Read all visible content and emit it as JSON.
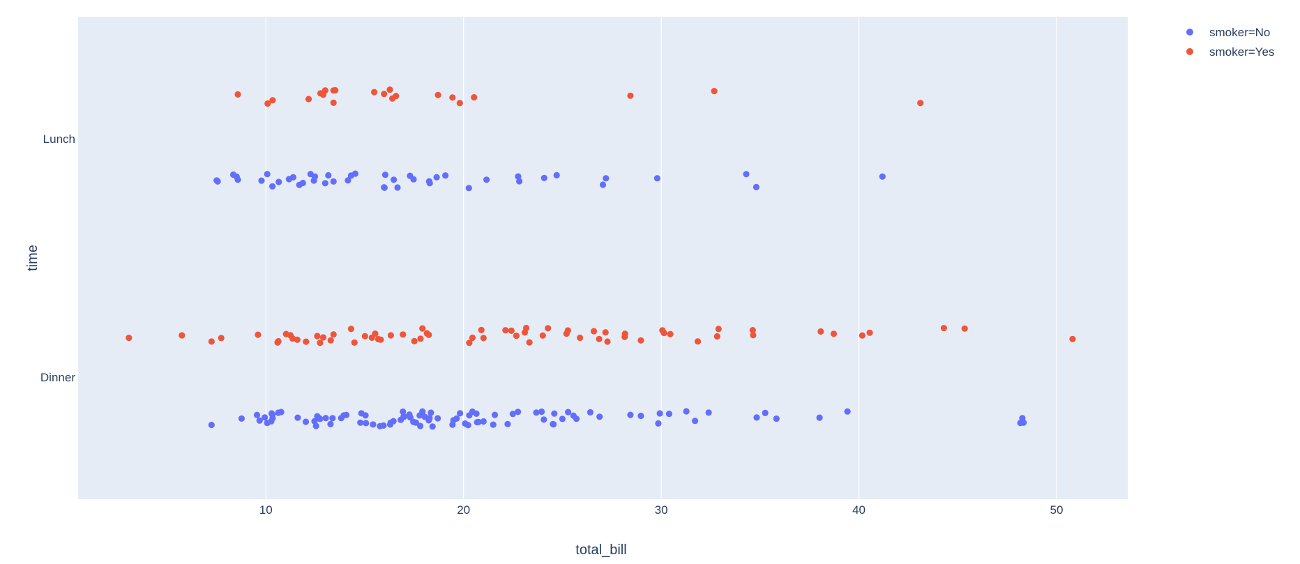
{
  "chart_data": {
    "type": "scatter",
    "subtype": "strip",
    "title": "",
    "xlabel": "total_bill",
    "ylabel": "time",
    "xlim": [
      0.5,
      53.6
    ],
    "xticks": [
      10,
      20,
      30,
      40,
      50
    ],
    "categories": [
      "Lunch",
      "Dinner"
    ],
    "grid": true,
    "legend_position": "top-right",
    "colors": {
      "plot_bg": "#e5ecf6",
      "grid": "#ffffff",
      "text": "#2a3f5f"
    },
    "series": [
      {
        "name": "smoker=No",
        "color": "#636efa",
        "points": [
          {
            "time": "Lunch",
            "x": 7.51
          },
          {
            "time": "Lunch",
            "x": 7.56
          },
          {
            "time": "Lunch",
            "x": 8.35
          },
          {
            "time": "Lunch",
            "x": 8.52
          },
          {
            "time": "Lunch",
            "x": 8.58
          },
          {
            "time": "Lunch",
            "x": 9.78
          },
          {
            "time": "Lunch",
            "x": 10.07
          },
          {
            "time": "Lunch",
            "x": 10.33
          },
          {
            "time": "Lunch",
            "x": 10.65
          },
          {
            "time": "Lunch",
            "x": 11.17
          },
          {
            "time": "Lunch",
            "x": 11.38
          },
          {
            "time": "Lunch",
            "x": 11.69
          },
          {
            "time": "Lunch",
            "x": 11.87
          },
          {
            "time": "Lunch",
            "x": 12.26
          },
          {
            "time": "Lunch",
            "x": 12.43
          },
          {
            "time": "Lunch",
            "x": 12.48
          },
          {
            "time": "Lunch",
            "x": 13.0
          },
          {
            "time": "Lunch",
            "x": 13.16
          },
          {
            "time": "Lunch",
            "x": 13.42
          },
          {
            "time": "Lunch",
            "x": 14.15
          },
          {
            "time": "Lunch",
            "x": 14.31
          },
          {
            "time": "Lunch",
            "x": 14.52
          },
          {
            "time": "Lunch",
            "x": 15.98
          },
          {
            "time": "Lunch",
            "x": 16.0
          },
          {
            "time": "Lunch",
            "x": 16.04
          },
          {
            "time": "Lunch",
            "x": 16.47
          },
          {
            "time": "Lunch",
            "x": 16.66
          },
          {
            "time": "Lunch",
            "x": 17.29
          },
          {
            "time": "Lunch",
            "x": 17.47
          },
          {
            "time": "Lunch",
            "x": 18.26
          },
          {
            "time": "Lunch",
            "x": 18.29
          },
          {
            "time": "Lunch",
            "x": 18.64
          },
          {
            "time": "Lunch",
            "x": 19.08
          },
          {
            "time": "Lunch",
            "x": 20.27
          },
          {
            "time": "Lunch",
            "x": 21.16
          },
          {
            "time": "Lunch",
            "x": 22.76
          },
          {
            "time": "Lunch",
            "x": 22.82
          },
          {
            "time": "Lunch",
            "x": 24.08
          },
          {
            "time": "Lunch",
            "x": 24.71
          },
          {
            "time": "Lunch",
            "x": 27.05
          },
          {
            "time": "Lunch",
            "x": 27.2
          },
          {
            "time": "Lunch",
            "x": 29.8
          },
          {
            "time": "Lunch",
            "x": 34.3
          },
          {
            "time": "Lunch",
            "x": 34.81
          },
          {
            "time": "Lunch",
            "x": 41.19
          },
          {
            "time": "Dinner",
            "x": 7.25
          },
          {
            "time": "Dinner",
            "x": 8.77
          },
          {
            "time": "Dinner",
            "x": 9.55
          },
          {
            "time": "Dinner",
            "x": 9.68
          },
          {
            "time": "Dinner",
            "x": 9.94
          },
          {
            "time": "Dinner",
            "x": 10.07
          },
          {
            "time": "Dinner",
            "x": 10.27
          },
          {
            "time": "Dinner",
            "x": 10.29
          },
          {
            "time": "Dinner",
            "x": 10.33
          },
          {
            "time": "Dinner",
            "x": 10.34
          },
          {
            "time": "Dinner",
            "x": 10.63
          },
          {
            "time": "Dinner",
            "x": 10.77
          },
          {
            "time": "Dinner",
            "x": 11.61
          },
          {
            "time": "Dinner",
            "x": 12.02
          },
          {
            "time": "Dinner",
            "x": 12.46
          },
          {
            "time": "Dinner",
            "x": 12.54
          },
          {
            "time": "Dinner",
            "x": 12.6
          },
          {
            "time": "Dinner",
            "x": 12.69
          },
          {
            "time": "Dinner",
            "x": 12.74
          },
          {
            "time": "Dinner",
            "x": 13.03
          },
          {
            "time": "Dinner",
            "x": 13.27
          },
          {
            "time": "Dinner",
            "x": 13.37
          },
          {
            "time": "Dinner",
            "x": 13.81
          },
          {
            "time": "Dinner",
            "x": 13.94
          },
          {
            "time": "Dinner",
            "x": 14.07
          },
          {
            "time": "Dinner",
            "x": 14.78
          },
          {
            "time": "Dinner",
            "x": 14.83
          },
          {
            "time": "Dinner",
            "x": 15.04
          },
          {
            "time": "Dinner",
            "x": 15.06
          },
          {
            "time": "Dinner",
            "x": 15.42
          },
          {
            "time": "Dinner",
            "x": 15.77
          },
          {
            "time": "Dinner",
            "x": 15.95
          },
          {
            "time": "Dinner",
            "x": 16.29
          },
          {
            "time": "Dinner",
            "x": 16.31
          },
          {
            "time": "Dinner",
            "x": 16.45
          },
          {
            "time": "Dinner",
            "x": 16.82
          },
          {
            "time": "Dinner",
            "x": 16.93
          },
          {
            "time": "Dinner",
            "x": 16.97
          },
          {
            "time": "Dinner",
            "x": 16.99
          },
          {
            "time": "Dinner",
            "x": 17.26
          },
          {
            "time": "Dinner",
            "x": 17.31
          },
          {
            "time": "Dinner",
            "x": 17.46
          },
          {
            "time": "Dinner",
            "x": 17.59
          },
          {
            "time": "Dinner",
            "x": 17.78
          },
          {
            "time": "Dinner",
            "x": 17.81
          },
          {
            "time": "Dinner",
            "x": 17.92
          },
          {
            "time": "Dinner",
            "x": 18.04
          },
          {
            "time": "Dinner",
            "x": 18.24
          },
          {
            "time": "Dinner",
            "x": 18.28
          },
          {
            "time": "Dinner",
            "x": 18.35
          },
          {
            "time": "Dinner",
            "x": 18.43
          },
          {
            "time": "Dinner",
            "x": 18.69
          },
          {
            "time": "Dinner",
            "x": 19.44
          },
          {
            "time": "Dinner",
            "x": 19.49
          },
          {
            "time": "Dinner",
            "x": 19.65
          },
          {
            "time": "Dinner",
            "x": 19.82
          },
          {
            "time": "Dinner",
            "x": 20.08
          },
          {
            "time": "Dinner",
            "x": 20.23
          },
          {
            "time": "Dinner",
            "x": 20.29
          },
          {
            "time": "Dinner",
            "x": 20.45
          },
          {
            "time": "Dinner",
            "x": 20.65
          },
          {
            "time": "Dinner",
            "x": 20.69
          },
          {
            "time": "Dinner",
            "x": 20.76
          },
          {
            "time": "Dinner",
            "x": 21.01
          },
          {
            "time": "Dinner",
            "x": 21.5
          },
          {
            "time": "Dinner",
            "x": 21.58
          },
          {
            "time": "Dinner",
            "x": 22.23
          },
          {
            "time": "Dinner",
            "x": 22.49
          },
          {
            "time": "Dinner",
            "x": 22.75
          },
          {
            "time": "Dinner",
            "x": 23.68
          },
          {
            "time": "Dinner",
            "x": 23.95
          },
          {
            "time": "Dinner",
            "x": 24.06
          },
          {
            "time": "Dinner",
            "x": 24.52
          },
          {
            "time": "Dinner",
            "x": 24.55
          },
          {
            "time": "Dinner",
            "x": 24.59
          },
          {
            "time": "Dinner",
            "x": 25.0
          },
          {
            "time": "Dinner",
            "x": 25.29
          },
          {
            "time": "Dinner",
            "x": 25.56
          },
          {
            "time": "Dinner",
            "x": 25.71
          },
          {
            "time": "Dinner",
            "x": 26.41
          },
          {
            "time": "Dinner",
            "x": 26.88
          },
          {
            "time": "Dinner",
            "x": 28.44
          },
          {
            "time": "Dinner",
            "x": 28.97
          },
          {
            "time": "Dinner",
            "x": 29.85
          },
          {
            "time": "Dinner",
            "x": 29.93
          },
          {
            "time": "Dinner",
            "x": 30.4
          },
          {
            "time": "Dinner",
            "x": 31.27
          },
          {
            "time": "Dinner",
            "x": 31.71
          },
          {
            "time": "Dinner",
            "x": 32.4
          },
          {
            "time": "Dinner",
            "x": 34.83
          },
          {
            "time": "Dinner",
            "x": 35.26
          },
          {
            "time": "Dinner",
            "x": 35.83
          },
          {
            "time": "Dinner",
            "x": 38.01
          },
          {
            "time": "Dinner",
            "x": 39.42
          },
          {
            "time": "Dinner",
            "x": 48.17
          },
          {
            "time": "Dinner",
            "x": 48.27
          },
          {
            "time": "Dinner",
            "x": 48.33
          }
        ]
      },
      {
        "name": "smoker=Yes",
        "color": "#ef553b",
        "points": [
          {
            "time": "Lunch",
            "x": 8.58
          },
          {
            "time": "Lunch",
            "x": 10.09
          },
          {
            "time": "Lunch",
            "x": 10.34
          },
          {
            "time": "Lunch",
            "x": 12.16
          },
          {
            "time": "Lunch",
            "x": 12.76
          },
          {
            "time": "Lunch",
            "x": 12.9
          },
          {
            "time": "Lunch",
            "x": 13.0
          },
          {
            "time": "Lunch",
            "x": 13.42
          },
          {
            "time": "Lunch",
            "x": 13.42
          },
          {
            "time": "Lunch",
            "x": 13.51
          },
          {
            "time": "Lunch",
            "x": 15.48
          },
          {
            "time": "Lunch",
            "x": 15.98
          },
          {
            "time": "Lunch",
            "x": 16.27
          },
          {
            "time": "Lunch",
            "x": 16.4
          },
          {
            "time": "Lunch",
            "x": 16.58
          },
          {
            "time": "Lunch",
            "x": 18.71
          },
          {
            "time": "Lunch",
            "x": 19.44
          },
          {
            "time": "Lunch",
            "x": 19.81
          },
          {
            "time": "Lunch",
            "x": 20.53
          },
          {
            "time": "Lunch",
            "x": 28.44
          },
          {
            "time": "Lunch",
            "x": 32.68
          },
          {
            "time": "Lunch",
            "x": 43.11
          },
          {
            "time": "Dinner",
            "x": 3.07
          },
          {
            "time": "Dinner",
            "x": 5.75
          },
          {
            "time": "Dinner",
            "x": 7.25
          },
          {
            "time": "Dinner",
            "x": 7.74
          },
          {
            "time": "Dinner",
            "x": 9.6
          },
          {
            "time": "Dinner",
            "x": 10.59
          },
          {
            "time": "Dinner",
            "x": 10.63
          },
          {
            "time": "Dinner",
            "x": 11.02
          },
          {
            "time": "Dinner",
            "x": 11.24
          },
          {
            "time": "Dinner",
            "x": 11.35
          },
          {
            "time": "Dinner",
            "x": 11.59
          },
          {
            "time": "Dinner",
            "x": 12.03
          },
          {
            "time": "Dinner",
            "x": 12.6
          },
          {
            "time": "Dinner",
            "x": 12.74
          },
          {
            "time": "Dinner",
            "x": 12.9
          },
          {
            "time": "Dinner",
            "x": 13.28
          },
          {
            "time": "Dinner",
            "x": 13.42
          },
          {
            "time": "Dinner",
            "x": 14.31
          },
          {
            "time": "Dinner",
            "x": 14.48
          },
          {
            "time": "Dinner",
            "x": 15.01
          },
          {
            "time": "Dinner",
            "x": 15.36
          },
          {
            "time": "Dinner",
            "x": 15.53
          },
          {
            "time": "Dinner",
            "x": 15.69
          },
          {
            "time": "Dinner",
            "x": 15.81
          },
          {
            "time": "Dinner",
            "x": 16.32
          },
          {
            "time": "Dinner",
            "x": 16.93
          },
          {
            "time": "Dinner",
            "x": 17.51
          },
          {
            "time": "Dinner",
            "x": 17.82
          },
          {
            "time": "Dinner",
            "x": 17.92
          },
          {
            "time": "Dinner",
            "x": 18.15
          },
          {
            "time": "Dinner",
            "x": 18.24
          },
          {
            "time": "Dinner",
            "x": 20.29
          },
          {
            "time": "Dinner",
            "x": 20.45
          },
          {
            "time": "Dinner",
            "x": 20.9
          },
          {
            "time": "Dinner",
            "x": 21.01
          },
          {
            "time": "Dinner",
            "x": 22.12
          },
          {
            "time": "Dinner",
            "x": 22.42
          },
          {
            "time": "Dinner",
            "x": 22.67
          },
          {
            "time": "Dinner",
            "x": 23.1
          },
          {
            "time": "Dinner",
            "x": 23.17
          },
          {
            "time": "Dinner",
            "x": 23.33
          },
          {
            "time": "Dinner",
            "x": 24.01
          },
          {
            "time": "Dinner",
            "x": 24.27
          },
          {
            "time": "Dinner",
            "x": 25.21
          },
          {
            "time": "Dinner",
            "x": 25.28
          },
          {
            "time": "Dinner",
            "x": 25.89
          },
          {
            "time": "Dinner",
            "x": 26.59
          },
          {
            "time": "Dinner",
            "x": 26.86
          },
          {
            "time": "Dinner",
            "x": 27.18
          },
          {
            "time": "Dinner",
            "x": 27.28
          },
          {
            "time": "Dinner",
            "x": 28.15
          },
          {
            "time": "Dinner",
            "x": 28.17
          },
          {
            "time": "Dinner",
            "x": 28.97
          },
          {
            "time": "Dinner",
            "x": 30.06
          },
          {
            "time": "Dinner",
            "x": 30.14
          },
          {
            "time": "Dinner",
            "x": 30.46
          },
          {
            "time": "Dinner",
            "x": 31.85
          },
          {
            "time": "Dinner",
            "x": 32.83
          },
          {
            "time": "Dinner",
            "x": 32.9
          },
          {
            "time": "Dinner",
            "x": 34.63
          },
          {
            "time": "Dinner",
            "x": 34.65
          },
          {
            "time": "Dinner",
            "x": 38.07
          },
          {
            "time": "Dinner",
            "x": 38.73
          },
          {
            "time": "Dinner",
            "x": 40.17
          },
          {
            "time": "Dinner",
            "x": 40.55
          },
          {
            "time": "Dinner",
            "x": 44.3
          },
          {
            "time": "Dinner",
            "x": 45.35
          },
          {
            "time": "Dinner",
            "x": 50.81
          }
        ]
      }
    ]
  }
}
